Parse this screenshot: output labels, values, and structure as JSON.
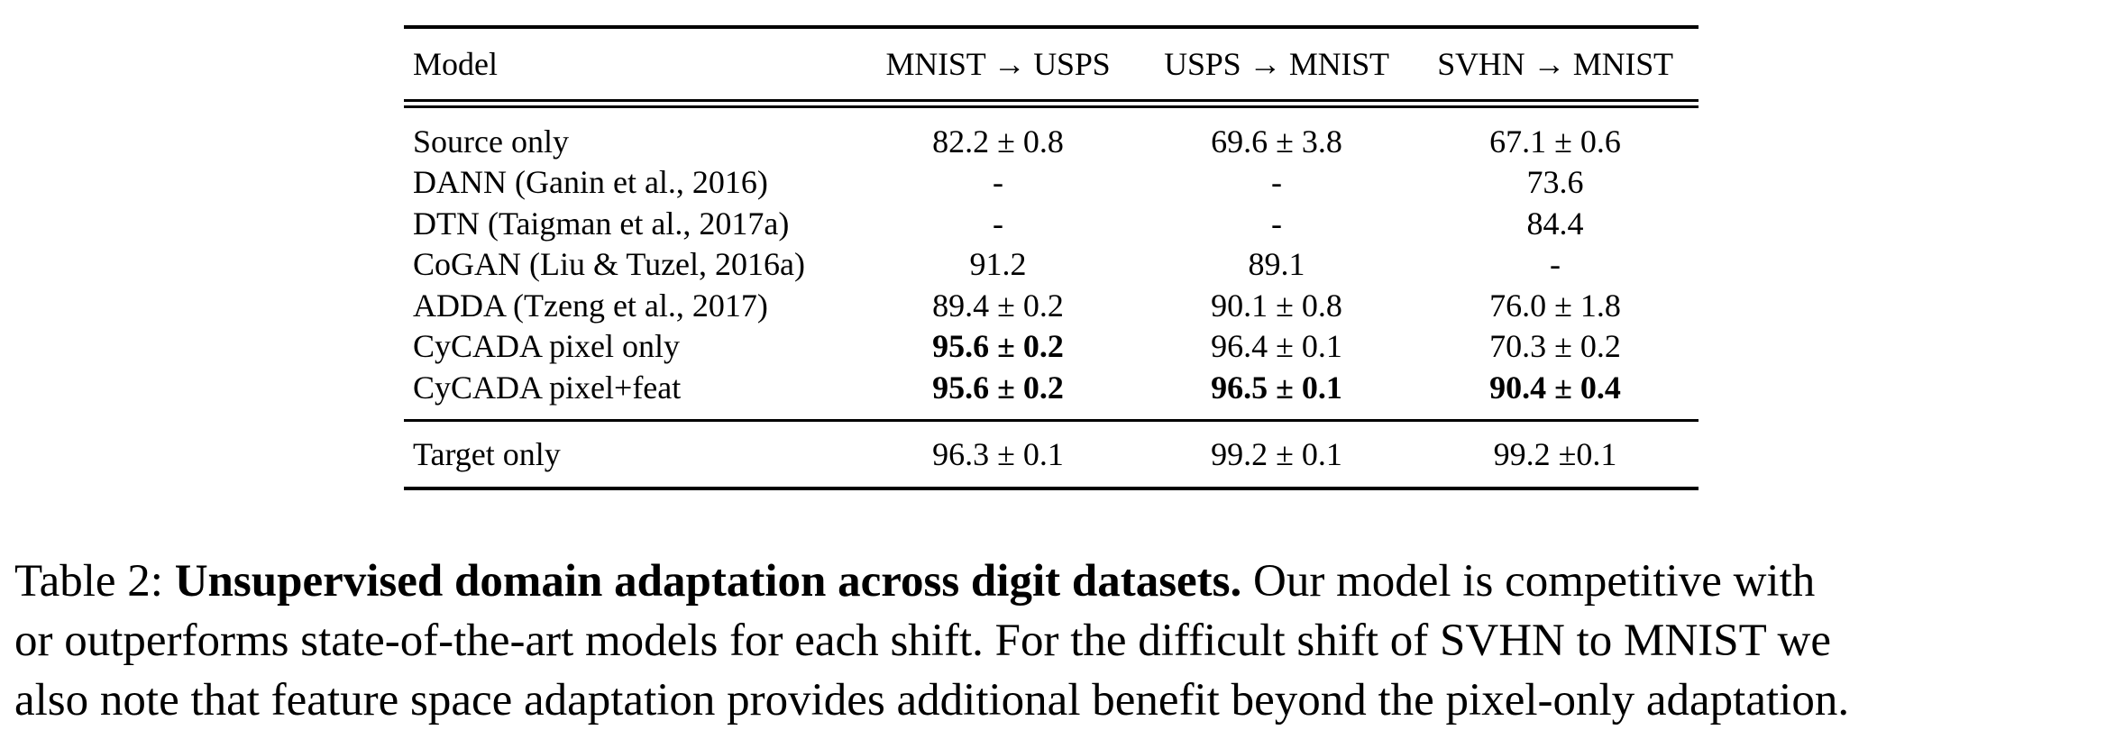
{
  "table": {
    "header": {
      "model": "Model",
      "col1": "MNIST → USPS",
      "col2": "USPS → MNIST",
      "col3": "SVHN → MNIST"
    },
    "rows": [
      {
        "model": "Source only",
        "v1": "82.2 ± 0.8",
        "v1_bold": false,
        "v2": "69.6 ± 3.8",
        "v2_bold": false,
        "v3": "67.1 ± 0.6",
        "v3_bold": false
      },
      {
        "model": "DANN (Ganin et al., 2016)",
        "v1": "-",
        "v1_bold": false,
        "v2": "-",
        "v2_bold": false,
        "v3": "73.6",
        "v3_bold": false
      },
      {
        "model": "DTN (Taigman et al., 2017a)",
        "v1": "-",
        "v1_bold": false,
        "v2": "-",
        "v2_bold": false,
        "v3": "84.4",
        "v3_bold": false
      },
      {
        "model": "CoGAN (Liu & Tuzel, 2016a)",
        "v1": "91.2",
        "v1_bold": false,
        "v2": "89.1",
        "v2_bold": false,
        "v3": "-",
        "v3_bold": false
      },
      {
        "model": "ADDA (Tzeng et al., 2017)",
        "v1": "89.4 ± 0.2",
        "v1_bold": false,
        "v2": "90.1 ± 0.8",
        "v2_bold": false,
        "v3": "76.0 ± 1.8",
        "v3_bold": false
      },
      {
        "model": "CyCADA pixel only",
        "v1": "95.6 ± 0.2",
        "v1_bold": true,
        "v2": "96.4 ± 0.1",
        "v2_bold": false,
        "v3": "70.3 ± 0.2",
        "v3_bold": false
      },
      {
        "model": "CyCADA pixel+feat",
        "v1": "95.6 ± 0.2",
        "v1_bold": true,
        "v2": "96.5 ± 0.1",
        "v2_bold": true,
        "v3": "90.4 ± 0.4",
        "v3_bold": true
      }
    ],
    "target": {
      "model": "Target only",
      "v1": "96.3 ± 0.1",
      "v2": "99.2 ± 0.1",
      "v3": "99.2 ±0.1"
    }
  },
  "caption": {
    "label": "Table 2: ",
    "bold_title": "Unsupervised domain adaptation across digit datasets.",
    "line1_rest": " Our model is competitive with",
    "line2": "or outperforms state-of-the-art models for each shift. For the difficult shift of SVHN to MNIST we",
    "line3": "also note that feature space adaptation provides additional benefit beyond the pixel-only adaptation."
  }
}
